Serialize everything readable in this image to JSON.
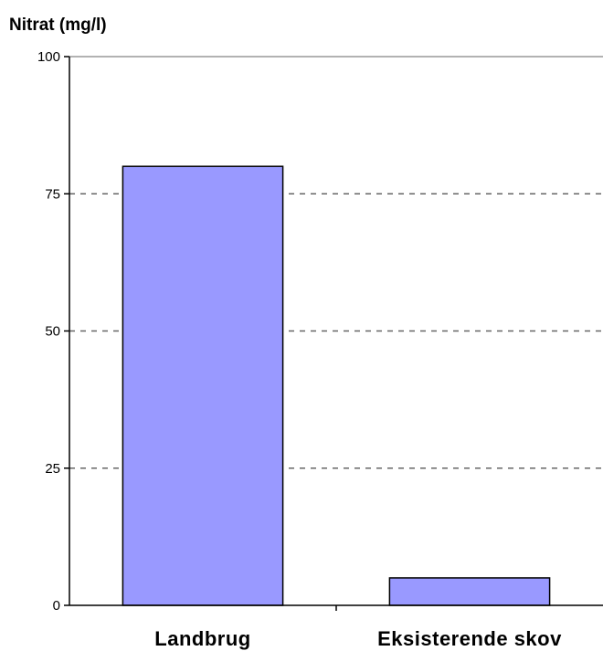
{
  "chart_data": {
    "type": "bar",
    "ylabel": "Nitrat (mg/l)",
    "categories": [
      "Landbrug",
      "Eksisterende skov"
    ],
    "values": [
      80,
      5
    ],
    "ylim": [
      0,
      100
    ],
    "yticks": [
      "0",
      "25",
      "50",
      "75",
      "100"
    ],
    "grid": true,
    "bar_color": "#9999ff",
    "bar_edge_color": "#000000"
  }
}
